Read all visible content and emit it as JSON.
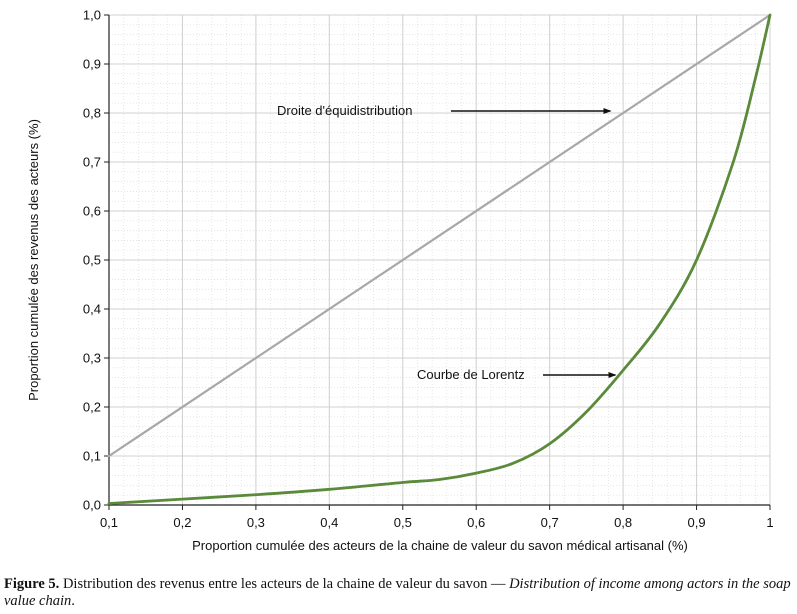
{
  "chart_data": {
    "type": "line",
    "xlabel": "Proportion cumulée des acteurs de la chaine de valeur du savon médical artisanal (%)",
    "ylabel": "Proportion cumulée des revenus des acteurs (%)",
    "xlim": [
      0.1,
      1.0
    ],
    "ylim": [
      0.0,
      1.0
    ],
    "x_ticks": [
      0.1,
      0.2,
      0.3,
      0.4,
      0.5,
      0.6,
      0.7,
      0.8,
      0.9,
      1.0
    ],
    "x_tick_labels": [
      "0,1",
      "0,2",
      "0,3",
      "0,4",
      "0,5",
      "0,6",
      "0,7",
      "0,8",
      "0,9",
      "1"
    ],
    "y_ticks": [
      0.0,
      0.1,
      0.2,
      0.3,
      0.4,
      0.5,
      0.6,
      0.7,
      0.8,
      0.9,
      1.0
    ],
    "y_tick_labels": [
      "0,0",
      "0,1",
      "0,2",
      "0,3",
      "0,4",
      "0,5",
      "0,6",
      "0,7",
      "0,8",
      "0,9",
      "1,0"
    ],
    "grid": true,
    "series": [
      {
        "name": "Droite d'équidistribution",
        "color": "#a8a8a8",
        "x": [
          0.1,
          1.0
        ],
        "y": [
          0.1,
          1.0
        ]
      },
      {
        "name": "Courbe de Lorentz",
        "color": "#5a8a3a",
        "x": [
          0.1,
          0.2,
          0.3,
          0.4,
          0.5,
          0.55,
          0.6,
          0.65,
          0.7,
          0.75,
          0.8,
          0.85,
          0.9,
          0.95,
          0.98,
          1.0
        ],
        "y": [
          0.003,
          0.012,
          0.021,
          0.032,
          0.046,
          0.052,
          0.065,
          0.085,
          0.125,
          0.19,
          0.275,
          0.37,
          0.5,
          0.7,
          0.87,
          1.0
        ]
      }
    ],
    "annotations": [
      {
        "text": "Droite d'équidistribution",
        "arrow_to": [
          0.78,
          0.8
        ]
      },
      {
        "text": "Courbe de Lorentz",
        "arrow_to": [
          0.78,
          0.263
        ]
      }
    ]
  },
  "caption": {
    "label": "Figure 5.",
    "text_fr": " Distribution des revenus entre les acteurs de la chaine de valeur du savon — ",
    "text_en": "Distribution of income among actors in the soap value chain",
    "end": "."
  }
}
